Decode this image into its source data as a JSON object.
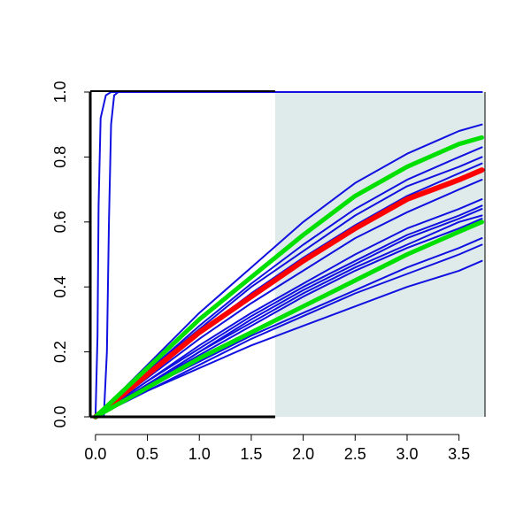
{
  "chart_data": {
    "type": "line",
    "title": "",
    "xlabel": "",
    "ylabel": "",
    "xlim": [
      -0.05,
      3.75
    ],
    "ylim": [
      0,
      1
    ],
    "grid": false,
    "shaded_region": {
      "x_start": 1.73,
      "x_end": 3.75,
      "color": "#dfeaea"
    },
    "x_ticks": [
      0.0,
      0.5,
      1.0,
      1.5,
      2.0,
      2.5,
      3.0,
      3.5
    ],
    "x_tick_labels": [
      "0.0",
      "0.5",
      "1.0",
      "1.5",
      "2.0",
      "2.5",
      "3.0",
      "3.5"
    ],
    "y_ticks": [
      0.0,
      0.2,
      0.4,
      0.6,
      0.8,
      1.0
    ],
    "y_tick_labels": [
      "0.0",
      "0.2",
      "0.4",
      "0.6",
      "0.8",
      "1.0"
    ],
    "colors": {
      "simulations": "#1010e0",
      "estimate": "#ff0000",
      "bounds": "#00e000",
      "axis": "#000000"
    },
    "series": [
      {
        "color": "#ff0000",
        "width": 6,
        "points": [
          [
            0,
            0
          ],
          [
            0.5,
            0.13
          ],
          [
            1,
            0.26
          ],
          [
            1.5,
            0.37
          ],
          [
            2,
            0.48
          ],
          [
            2.5,
            0.58
          ],
          [
            3,
            0.67
          ],
          [
            3.5,
            0.73
          ],
          [
            3.72,
            0.76
          ]
        ]
      },
      {
        "color": "#00e000",
        "width": 5,
        "points": [
          [
            0,
            0
          ],
          [
            0.5,
            0.15
          ],
          [
            1,
            0.3
          ],
          [
            1.5,
            0.43
          ],
          [
            2,
            0.56
          ],
          [
            2.5,
            0.68
          ],
          [
            3,
            0.77
          ],
          [
            3.5,
            0.84
          ],
          [
            3.72,
            0.86
          ]
        ]
      },
      {
        "color": "#00e000",
        "width": 5,
        "points": [
          [
            0,
            0
          ],
          [
            0.5,
            0.09
          ],
          [
            1,
            0.18
          ],
          [
            1.5,
            0.26
          ],
          [
            2,
            0.34
          ],
          [
            2.5,
            0.42
          ],
          [
            3,
            0.5
          ],
          [
            3.5,
            0.57
          ],
          [
            3.72,
            0.6
          ]
        ]
      },
      {
        "color": "#1010e0",
        "width": 2,
        "points": [
          [
            0,
            0
          ],
          [
            0.5,
            0.16
          ],
          [
            1,
            0.32
          ],
          [
            1.5,
            0.46
          ],
          [
            2,
            0.6
          ],
          [
            2.5,
            0.72
          ],
          [
            3,
            0.81
          ],
          [
            3.5,
            0.88
          ],
          [
            3.72,
            0.9
          ]
        ]
      },
      {
        "color": "#1010e0",
        "width": 2,
        "points": [
          [
            0,
            0
          ],
          [
            0.5,
            0.14
          ],
          [
            1,
            0.28
          ],
          [
            1.5,
            0.41
          ],
          [
            2,
            0.53
          ],
          [
            2.5,
            0.64
          ],
          [
            3,
            0.73
          ],
          [
            3.5,
            0.8
          ],
          [
            3.72,
            0.83
          ]
        ]
      },
      {
        "color": "#1010e0",
        "width": 2,
        "points": [
          [
            0,
            0
          ],
          [
            0.5,
            0.14
          ],
          [
            1,
            0.27
          ],
          [
            1.5,
            0.4
          ],
          [
            2,
            0.51
          ],
          [
            2.5,
            0.62
          ],
          [
            3,
            0.71
          ],
          [
            3.5,
            0.77
          ],
          [
            3.72,
            0.8
          ]
        ]
      },
      {
        "color": "#1010e0",
        "width": 2,
        "points": [
          [
            0,
            0
          ],
          [
            0.5,
            0.13
          ],
          [
            1,
            0.26
          ],
          [
            1.5,
            0.38
          ],
          [
            2,
            0.49
          ],
          [
            2.5,
            0.59
          ],
          [
            3,
            0.68
          ],
          [
            3.5,
            0.75
          ],
          [
            3.72,
            0.78
          ]
        ]
      },
      {
        "color": "#1010e0",
        "width": 2,
        "points": [
          [
            0,
            0
          ],
          [
            0.5,
            0.12
          ],
          [
            1,
            0.24
          ],
          [
            1.5,
            0.35
          ],
          [
            2,
            0.45
          ],
          [
            2.5,
            0.55
          ],
          [
            3,
            0.63
          ],
          [
            3.5,
            0.7
          ],
          [
            3.72,
            0.73
          ]
        ]
      },
      {
        "color": "#1010e0",
        "width": 2,
        "points": [
          [
            0,
            0
          ],
          [
            0.5,
            0.11
          ],
          [
            1,
            0.22
          ],
          [
            1.5,
            0.32
          ],
          [
            2,
            0.41
          ],
          [
            2.5,
            0.5
          ],
          [
            3,
            0.58
          ],
          [
            3.5,
            0.64
          ],
          [
            3.72,
            0.67
          ]
        ]
      },
      {
        "color": "#1010e0",
        "width": 2,
        "points": [
          [
            0,
            0
          ],
          [
            0.5,
            0.11
          ],
          [
            1,
            0.21
          ],
          [
            1.5,
            0.31
          ],
          [
            2,
            0.4
          ],
          [
            2.5,
            0.48
          ],
          [
            3,
            0.56
          ],
          [
            3.5,
            0.62
          ],
          [
            3.72,
            0.65
          ]
        ]
      },
      {
        "color": "#1010e0",
        "width": 2,
        "points": [
          [
            0,
            0
          ],
          [
            0.5,
            0.1
          ],
          [
            1,
            0.2
          ],
          [
            1.5,
            0.3
          ],
          [
            2,
            0.39
          ],
          [
            2.5,
            0.47
          ],
          [
            3,
            0.55
          ],
          [
            3.5,
            0.61
          ],
          [
            3.72,
            0.64
          ]
        ]
      },
      {
        "color": "#1010e0",
        "width": 2,
        "points": [
          [
            0,
            0
          ],
          [
            0.5,
            0.1
          ],
          [
            1,
            0.2
          ],
          [
            1.5,
            0.29
          ],
          [
            2,
            0.38
          ],
          [
            2.5,
            0.46
          ],
          [
            3,
            0.53
          ],
          [
            3.5,
            0.6
          ],
          [
            3.72,
            0.62
          ]
        ]
      },
      {
        "color": "#1010e0",
        "width": 2,
        "points": [
          [
            0,
            0
          ],
          [
            0.5,
            0.1
          ],
          [
            1,
            0.19
          ],
          [
            1.5,
            0.28
          ],
          [
            2,
            0.37
          ],
          [
            2.5,
            0.45
          ],
          [
            3,
            0.52
          ],
          [
            3.5,
            0.58
          ],
          [
            3.72,
            0.61
          ]
        ]
      },
      {
        "color": "#1010e0",
        "width": 2,
        "points": [
          [
            0,
            0
          ],
          [
            0.5,
            0.09
          ],
          [
            1,
            0.17
          ],
          [
            1.5,
            0.25
          ],
          [
            2,
            0.32
          ],
          [
            2.5,
            0.39
          ],
          [
            3,
            0.46
          ],
          [
            3.5,
            0.52
          ],
          [
            3.72,
            0.55
          ]
        ]
      },
      {
        "color": "#1010e0",
        "width": 2,
        "points": [
          [
            0,
            0
          ],
          [
            0.5,
            0.08
          ],
          [
            1,
            0.16
          ],
          [
            1.5,
            0.24
          ],
          [
            2,
            0.31
          ],
          [
            2.5,
            0.38
          ],
          [
            3,
            0.44
          ],
          [
            3.5,
            0.5
          ],
          [
            3.72,
            0.53
          ]
        ]
      },
      {
        "color": "#1010e0",
        "width": 2,
        "points": [
          [
            0,
            0
          ],
          [
            0.5,
            0.08
          ],
          [
            1,
            0.15
          ],
          [
            1.5,
            0.22
          ],
          [
            2,
            0.28
          ],
          [
            2.5,
            0.34
          ],
          [
            3,
            0.4
          ],
          [
            3.5,
            0.45
          ],
          [
            3.72,
            0.48
          ]
        ]
      },
      {
        "color": "#1010e0",
        "width": 2,
        "points": [
          [
            0,
            0
          ],
          [
            0.02,
            0.25
          ],
          [
            0.03,
            0.65
          ],
          [
            0.05,
            0.92
          ],
          [
            0.1,
            0.99
          ],
          [
            0.15,
            1.0
          ],
          [
            3.72,
            1.0
          ]
        ]
      },
      {
        "color": "#1010e0",
        "width": 2,
        "points": [
          [
            0.08,
            0
          ],
          [
            0.11,
            0.2
          ],
          [
            0.13,
            0.6
          ],
          [
            0.15,
            0.9
          ],
          [
            0.18,
            0.99
          ],
          [
            0.22,
            1.0
          ],
          [
            3.72,
            1.0
          ]
        ]
      }
    ]
  }
}
